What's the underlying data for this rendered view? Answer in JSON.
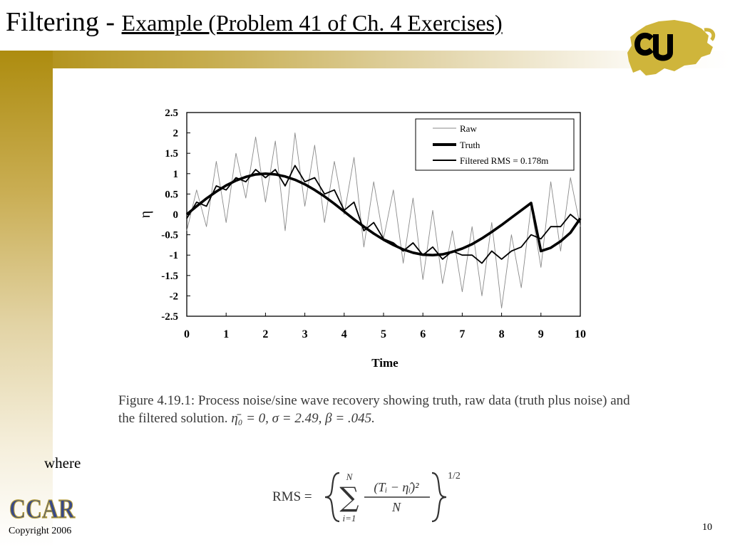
{
  "slide": {
    "title": "Filtering - ",
    "subtitle": "Example (Problem 41 of Ch. 4 Exercises)",
    "caption": {
      "lead": "Figure 4.19.1: Process noise/sine wave recovery showing truth, raw data (truth plus noise) and the filtered solution.",
      "eta0": "η̄₀ = 0,",
      "sigma": "σ = 2.49,",
      "beta": "β = .045."
    },
    "where": "where",
    "formula": {
      "lhs": "RMS =",
      "sum_top": "N",
      "sum_bottom": "i=1",
      "numerator": "(Tᵢ − η̂ᵢ)²",
      "denominator": "N",
      "exponent": "1/2"
    },
    "logo_text": "CCAR",
    "copyright": "Copyright 2006",
    "page_number": "10",
    "colors": {
      "gold": "#ad8c0f",
      "cu_gold": "#cfb53b"
    }
  },
  "chart_data": {
    "type": "line",
    "title": "",
    "xlabel": "Time",
    "ylabel": "η",
    "xlim": [
      0,
      10
    ],
    "ylim": [
      -2.5,
      2.5
    ],
    "x_ticks": [
      "0",
      "1",
      "2",
      "3",
      "4",
      "5",
      "6",
      "7",
      "8",
      "9",
      "10"
    ],
    "y_ticks": [
      "2.5",
      "2",
      "1.5",
      "1",
      "0.5",
      "0",
      "-0.5",
      "-1",
      "-1.5",
      "-2",
      "-2.5"
    ],
    "grid": false,
    "legend_position": "top-right",
    "series": [
      {
        "name": "Raw",
        "x": [
          0,
          0.25,
          0.5,
          0.75,
          1,
          1.25,
          1.5,
          1.75,
          2,
          2.25,
          2.5,
          2.75,
          3,
          3.25,
          3.5,
          3.75,
          4,
          4.25,
          4.5,
          4.75,
          5,
          5.25,
          5.5,
          5.75,
          6,
          6.25,
          6.5,
          6.75,
          7,
          7.25,
          7.5,
          7.75,
          8,
          8.25,
          8.5,
          8.75,
          9,
          9.25,
          9.5,
          9.75,
          10
        ],
        "y": [
          -0.4,
          0.6,
          -0.3,
          1.3,
          -0.2,
          1.5,
          0.4,
          1.9,
          0.3,
          1.8,
          -0.4,
          2.0,
          0.2,
          1.7,
          -0.2,
          1.3,
          0.0,
          1.4,
          -0.8,
          0.8,
          -0.6,
          0.6,
          -1.2,
          0.4,
          -1.6,
          0.1,
          -1.7,
          -0.4,
          -1.9,
          -0.3,
          -2.0,
          -0.2,
          -2.3,
          -0.5,
          -1.8,
          0.2,
          -1.3,
          0.8,
          -0.9,
          0.9,
          -0.3
        ]
      },
      {
        "name": "Truth",
        "x": [
          0,
          0.25,
          0.5,
          0.75,
          1,
          1.25,
          1.5,
          1.75,
          2,
          2.25,
          2.5,
          2.75,
          3,
          3.25,
          3.5,
          3.75,
          4,
          4.25,
          4.5,
          4.75,
          5,
          5.25,
          5.5,
          5.75,
          6,
          6.25,
          6.5,
          6.75,
          7,
          7.25,
          7.5,
          7.75,
          8,
          8.25,
          8.5,
          8.75,
          9,
          9.25,
          9.5,
          9.75,
          10
        ],
        "y": [
          0.0,
          0.2,
          0.39,
          0.56,
          0.71,
          0.83,
          0.92,
          0.98,
          1.0,
          0.98,
          0.93,
          0.85,
          0.74,
          0.6,
          0.44,
          0.26,
          0.07,
          -0.12,
          -0.3,
          -0.47,
          -0.62,
          -0.75,
          -0.86,
          -0.94,
          -0.99,
          -1.0,
          -0.98,
          -0.92,
          -0.84,
          -0.73,
          -0.59,
          -0.43,
          -0.26,
          -0.08,
          0.1,
          0.28,
          -0.9,
          -0.82,
          -0.66,
          -0.45,
          -0.1
        ]
      },
      {
        "name": "Filtered RMS = 0.178m",
        "x": [
          0,
          0.25,
          0.5,
          0.75,
          1,
          1.25,
          1.5,
          1.75,
          2,
          2.25,
          2.5,
          2.75,
          3,
          3.25,
          3.5,
          3.75,
          4,
          4.25,
          4.5,
          4.75,
          5,
          5.25,
          5.5,
          5.75,
          6,
          6.25,
          6.5,
          6.75,
          7,
          7.25,
          7.5,
          7.75,
          8,
          8.25,
          8.5,
          8.75,
          9,
          9.25,
          9.5,
          9.75,
          10
        ],
        "y": [
          -0.1,
          0.3,
          0.2,
          0.7,
          0.6,
          0.9,
          0.8,
          1.1,
          0.9,
          1.1,
          0.7,
          1.2,
          0.8,
          0.9,
          0.5,
          0.6,
          0.1,
          0.3,
          -0.4,
          -0.2,
          -0.6,
          -0.7,
          -0.9,
          -0.7,
          -1.0,
          -0.8,
          -1.1,
          -0.9,
          -1.0,
          -1.0,
          -1.2,
          -0.9,
          -1.1,
          -0.9,
          -0.8,
          -0.5,
          -0.6,
          -0.3,
          -0.3,
          0.0,
          -0.2
        ]
      }
    ]
  }
}
